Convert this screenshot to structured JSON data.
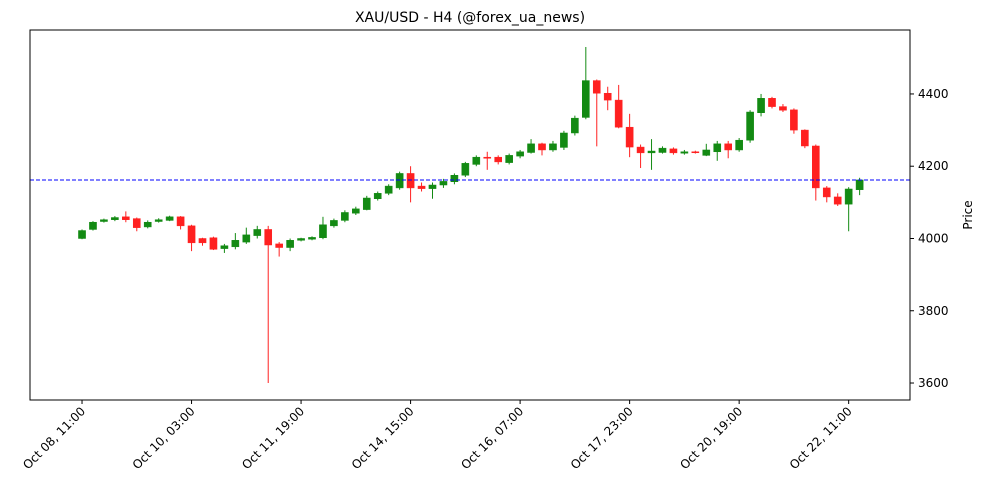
{
  "chart_data": {
    "type": "candlestick",
    "title": "XAU/USD - H4 (@forex_ua_news)",
    "y_label": "Price",
    "up_color": "#138a13",
    "down_color": "#ff2020",
    "open": [
      4000,
      4025,
      4047,
      4052,
      4060,
      4055,
      4032,
      4047,
      4050,
      4060,
      4035,
      4000,
      4002,
      3972,
      3977,
      3990,
      4008,
      4025,
      3985,
      3975,
      3995,
      3998,
      4002,
      4035,
      4050,
      4070,
      4080,
      4110,
      4125,
      4140,
      4180,
      4145,
      4138,
      4148,
      4157,
      4175,
      4205,
      4225,
      4225,
      4210,
      4228,
      4238,
      4262,
      4245,
      4252,
      4292,
      4335,
      4437,
      4402,
      4383,
      4308,
      4253,
      4237,
      4238,
      4248,
      4236,
      4240,
      4230,
      4240,
      4262,
      4245,
      4272,
      4348,
      4388,
      4365,
      4356,
      4300,
      4256,
      4140,
      4115,
      4095,
      4135
    ],
    "high": [
      4025,
      4048,
      4055,
      4062,
      4075,
      4058,
      4050,
      4056,
      4063,
      4062,
      4038,
      4002,
      4005,
      3985,
      4015,
      4030,
      4035,
      4035,
      3990,
      4000,
      4002,
      4006,
      4060,
      4055,
      4078,
      4088,
      4118,
      4130,
      4150,
      4185,
      4200,
      4155,
      4155,
      4165,
      4180,
      4212,
      4230,
      4240,
      4230,
      4235,
      4245,
      4275,
      4265,
      4270,
      4298,
      4340,
      4530,
      4440,
      4420,
      4425,
      4345,
      4260,
      4275,
      4255,
      4252,
      4245,
      4243,
      4262,
      4270,
      4270,
      4278,
      4355,
      4400,
      4392,
      4372,
      4360,
      4302,
      4260,
      4145,
      4125,
      4142,
      4168
    ],
    "low": [
      3998,
      4022,
      4044,
      4048,
      4045,
      4020,
      4028,
      4044,
      4048,
      4025,
      3965,
      3980,
      3968,
      3960,
      3970,
      3985,
      4000,
      3600,
      3950,
      3965,
      3992,
      3995,
      3998,
      4030,
      4045,
      4065,
      4078,
      4105,
      4120,
      4135,
      4100,
      4130,
      4110,
      4140,
      4150,
      4170,
      4200,
      4190,
      4205,
      4205,
      4222,
      4235,
      4230,
      4240,
      4245,
      4285,
      4330,
      4255,
      4355,
      4305,
      4225,
      4195,
      4190,
      4235,
      4232,
      4232,
      4235,
      4228,
      4215,
      4222,
      4240,
      4265,
      4338,
      4360,
      4350,
      4290,
      4250,
      4105,
      4100,
      4090,
      4020,
      4120
    ],
    "close": [
      4022,
      4045,
      4052,
      4058,
      4052,
      4030,
      4045,
      4052,
      4060,
      4035,
      3988,
      3988,
      3970,
      3980,
      3995,
      4010,
      4025,
      3982,
      3975,
      3995,
      4000,
      4003,
      4038,
      4050,
      4072,
      4082,
      4112,
      4125,
      4145,
      4180,
      4140,
      4138,
      4148,
      4158,
      4175,
      4208,
      4225,
      4222,
      4212,
      4230,
      4240,
      4262,
      4245,
      4262,
      4292,
      4333,
      4437,
      4402,
      4383,
      4308,
      4253,
      4237,
      4242,
      4250,
      4237,
      4240,
      4238,
      4245,
      4262,
      4245,
      4272,
      4350,
      4388,
      4365,
      4355,
      4300,
      4256,
      4140,
      4115,
      4095,
      4137,
      4162
    ],
    "xlim": [
      -4.75,
      75.6
    ],
    "xticks": [
      {
        "value": 0,
        "label": "Oct 08, 11:00"
      },
      {
        "value": 10,
        "label": "Oct 10, 03:00"
      },
      {
        "value": 20,
        "label": "Oct 11, 19:00"
      },
      {
        "value": 30,
        "label": "Oct 14, 15:00"
      },
      {
        "value": 40,
        "label": "Oct 16, 07:00"
      },
      {
        "value": 50,
        "label": "Oct 17, 23:00"
      },
      {
        "value": 60,
        "label": "Oct 20, 19:00"
      },
      {
        "value": 70,
        "label": "Oct 22, 11:00"
      }
    ],
    "ylim": [
      3553,
      4577
    ],
    "yticks": [
      3600,
      3800,
      4000,
      4200,
      4400
    ],
    "hline": {
      "value": 4162,
      "color": "#0000ff",
      "dashed": true
    }
  }
}
